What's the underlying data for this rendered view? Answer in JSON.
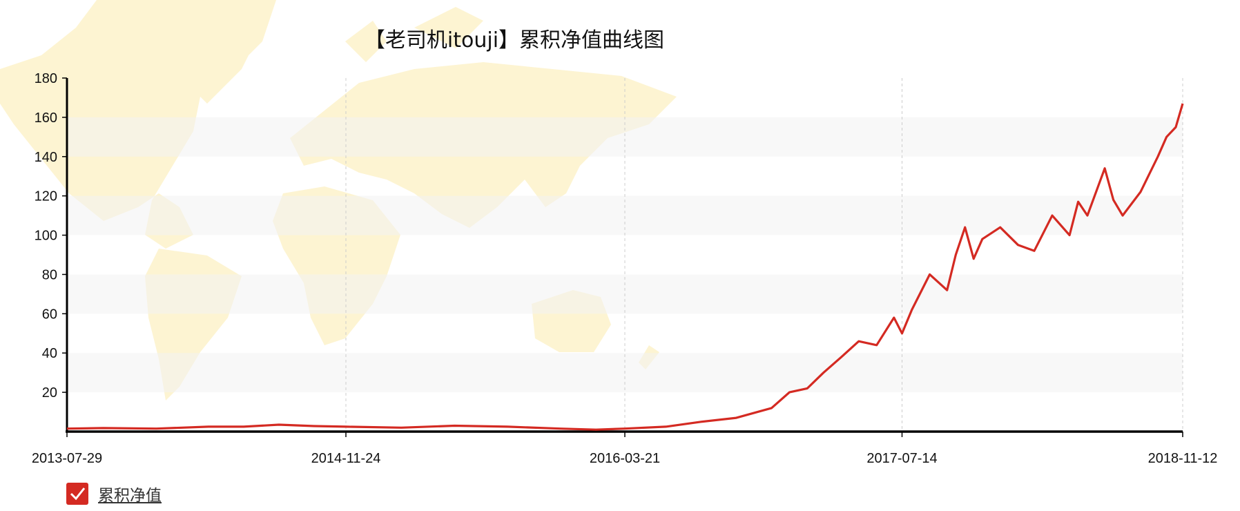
{
  "chart_data": {
    "type": "line",
    "title": "【老司机itouji】累积净值曲线图",
    "xlabel": "",
    "ylabel": "",
    "ylim": [
      0,
      180
    ],
    "y_ticks": [
      20,
      40,
      60,
      80,
      100,
      120,
      140,
      160,
      180
    ],
    "x_ticks": [
      "2013-07-29",
      "2014-11-24",
      "2016-03-21",
      "2017-07-14",
      "2018-11-12"
    ],
    "x_range": [
      "2013-07-29",
      "2018-11-12"
    ],
    "grid": "horizontal bands + vertical dashed lines at x ticks",
    "legend_position": "bottom-left",
    "series": [
      {
        "name": "累积净值",
        "color": "#d42a22",
        "x": [
          "2013-07-29",
          "2013-09-30",
          "2013-12-31",
          "2014-03-31",
          "2014-05-31",
          "2014-07-31",
          "2014-09-30",
          "2014-11-24",
          "2015-02-28",
          "2015-05-31",
          "2015-08-31",
          "2015-11-30",
          "2016-01-31",
          "2016-03-21",
          "2016-05-31",
          "2016-07-31",
          "2016-09-30",
          "2016-11-30",
          "2016-12-31",
          "2017-01-31",
          "2017-02-28",
          "2017-03-31",
          "2017-04-30",
          "2017-05-31",
          "2017-06-30",
          "2017-07-14",
          "2017-07-31",
          "2017-08-31",
          "2017-09-30",
          "2017-10-15",
          "2017-10-31",
          "2017-11-15",
          "2017-11-30",
          "2017-12-31",
          "2018-01-31",
          "2018-02-28",
          "2018-03-31",
          "2018-04-30",
          "2018-05-15",
          "2018-05-31",
          "2018-06-30",
          "2018-07-15",
          "2018-07-31",
          "2018-08-31",
          "2018-09-30",
          "2018-10-15",
          "2018-10-31",
          "2018-11-12"
        ],
        "values": [
          1.5,
          1.8,
          1.5,
          2.5,
          2.5,
          3.5,
          2.8,
          2.5,
          2.0,
          3.0,
          2.5,
          1.5,
          1.0,
          1.5,
          2.5,
          5.0,
          7.0,
          12.0,
          20.0,
          22.0,
          30.0,
          38.0,
          46.0,
          44.0,
          58.0,
          50.0,
          62.0,
          80.0,
          72.0,
          90.0,
          104.0,
          88.0,
          98.0,
          104.0,
          95.0,
          92.0,
          110.0,
          100.0,
          117.0,
          110.0,
          134.0,
          118.0,
          110.0,
          122.0,
          140.0,
          150.0,
          155.0,
          167.0
        ]
      }
    ]
  },
  "legend": {
    "label": "累积净值",
    "checked": true
  }
}
